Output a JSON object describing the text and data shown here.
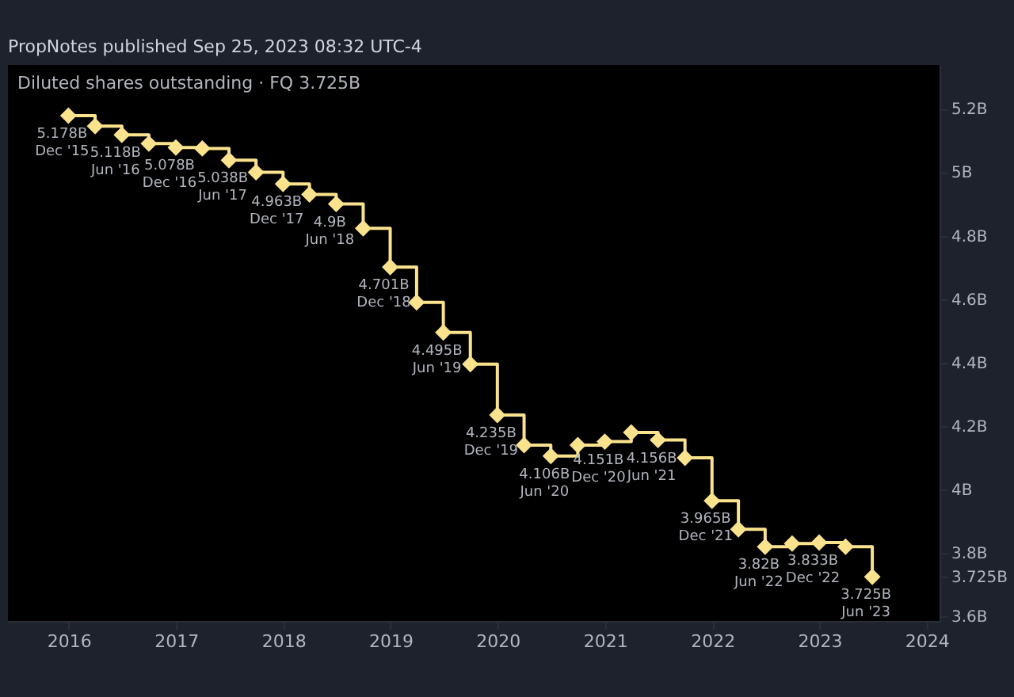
{
  "chart_data": {
    "type": "step",
    "title": "Diluted shares outstanding · FQ 3.725B",
    "annotations": [
      "PropNotes published Sep 25, 2023 08:32 UTC-4",
      {
        "text": "Dec '15",
        "x": "2015-12-31",
        "y": 5.178
      },
      {
        "text": "Jun '16",
        "x": "2016-06-30",
        "y": 5.118
      },
      {
        "text": "Dec '16",
        "x": "2016-12-31",
        "y": 5.078
      },
      {
        "text": "Jun '17",
        "x": "2017-06-30",
        "y": 5.038
      },
      {
        "text": "Dec '17",
        "x": "2017-12-31",
        "y": 4.963
      },
      {
        "text": "Jun '18",
        "x": "2018-06-30",
        "y": 4.9
      },
      {
        "text": "Dec '18",
        "x": "2018-12-31",
        "y": 4.701
      },
      {
        "text": "Jun '19",
        "x": "2019-06-30",
        "y": 4.495
      },
      {
        "text": "Dec '19",
        "x": "2019-12-31",
        "y": 4.235
      },
      {
        "text": "Jun '20",
        "x": "2020-06-30",
        "y": 4.106
      },
      {
        "text": "Dec '20",
        "x": "2020-12-31",
        "y": 4.151
      },
      {
        "text": "Jun '21",
        "x": "2021-06-30",
        "y": 4.156
      },
      {
        "text": "Dec '21",
        "x": "2021-12-31",
        "y": 3.965
      },
      {
        "text": "Jun '22",
        "x": "2022-06-30",
        "y": 3.82
      },
      {
        "text": "Dec '22",
        "x": "2022-12-31",
        "y": 3.833
      },
      {
        "text": "Jun '23",
        "x": "2023-06-30",
        "y": 3.725
      }
    ],
    "x": [
      "2015-12-31",
      "2016-03-31",
      "2016-06-30",
      "2016-09-30",
      "2016-12-31",
      "2017-03-31",
      "2017-06-30",
      "2017-09-30",
      "2017-12-31",
      "2018-03-31",
      "2018-06-30",
      "2018-09-30",
      "2018-12-31",
      "2019-03-31",
      "2019-06-30",
      "2019-09-30",
      "2019-12-31",
      "2020-03-31",
      "2020-06-30",
      "2020-09-30",
      "2020-12-31",
      "2021-03-31",
      "2021-06-30",
      "2021-09-30",
      "2021-12-31",
      "2022-03-31",
      "2022-06-30",
      "2022-09-30",
      "2022-12-31",
      "2023-03-31",
      "2023-06-30"
    ],
    "series": [
      {
        "color": "#fbe38e",
        "values": [
          5.178,
          5.145,
          5.118,
          5.09,
          5.078,
          5.075,
          5.038,
          5.0,
          4.963,
          4.93,
          4.9,
          4.823,
          4.701,
          4.59,
          4.495,
          4.395,
          4.235,
          4.14,
          4.106,
          4.14,
          4.151,
          4.18,
          4.156,
          4.1,
          3.965,
          3.875,
          3.82,
          3.83,
          3.833,
          3.82,
          3.725
        ],
        "value_labels": [
          "5.178B",
          null,
          "5.118B",
          null,
          "5.078B",
          null,
          "5.038B",
          null,
          "4.963B",
          null,
          "4.9B",
          null,
          "4.701B",
          null,
          "4.495B",
          null,
          "4.235B",
          null,
          "4.106B",
          null,
          "4.151B",
          null,
          "4.156B",
          null,
          "3.965B",
          null,
          "3.82B",
          null,
          "3.833B",
          null,
          "3.725B"
        ]
      }
    ],
    "marker": "diamond",
    "line_style": "solid",
    "grid": false,
    "xlim": [
      "2015-06-08",
      "2024-02-14"
    ],
    "xticks": [
      {
        "value": "2016",
        "label": "2016"
      },
      {
        "value": "2017",
        "label": "2017"
      },
      {
        "value": "2018",
        "label": "2018"
      },
      {
        "value": "2019",
        "label": "2019"
      },
      {
        "value": "2020",
        "label": "2020"
      },
      {
        "value": "2021",
        "label": "2021"
      },
      {
        "value": "2022",
        "label": "2022"
      },
      {
        "value": "2023",
        "label": "2023"
      },
      {
        "value": "2024",
        "label": "2024"
      }
    ],
    "ylim": [
      3.586,
      5.338
    ],
    "yticks": [
      {
        "value": 3.6,
        "label": "3.6B"
      },
      {
        "value": 3.725,
        "label": "3.725B"
      },
      {
        "value": 3.8,
        "label": "3.8B"
      },
      {
        "value": 4.0,
        "label": "4B"
      },
      {
        "value": 4.2,
        "label": "4.2B"
      },
      {
        "value": 4.4,
        "label": "4.4B"
      },
      {
        "value": 4.6,
        "label": "4.6B"
      },
      {
        "value": 4.8,
        "label": "4.8B"
      },
      {
        "value": 5.0,
        "label": "5B"
      },
      {
        "value": 5.2,
        "label": "5.2B"
      }
    ]
  }
}
